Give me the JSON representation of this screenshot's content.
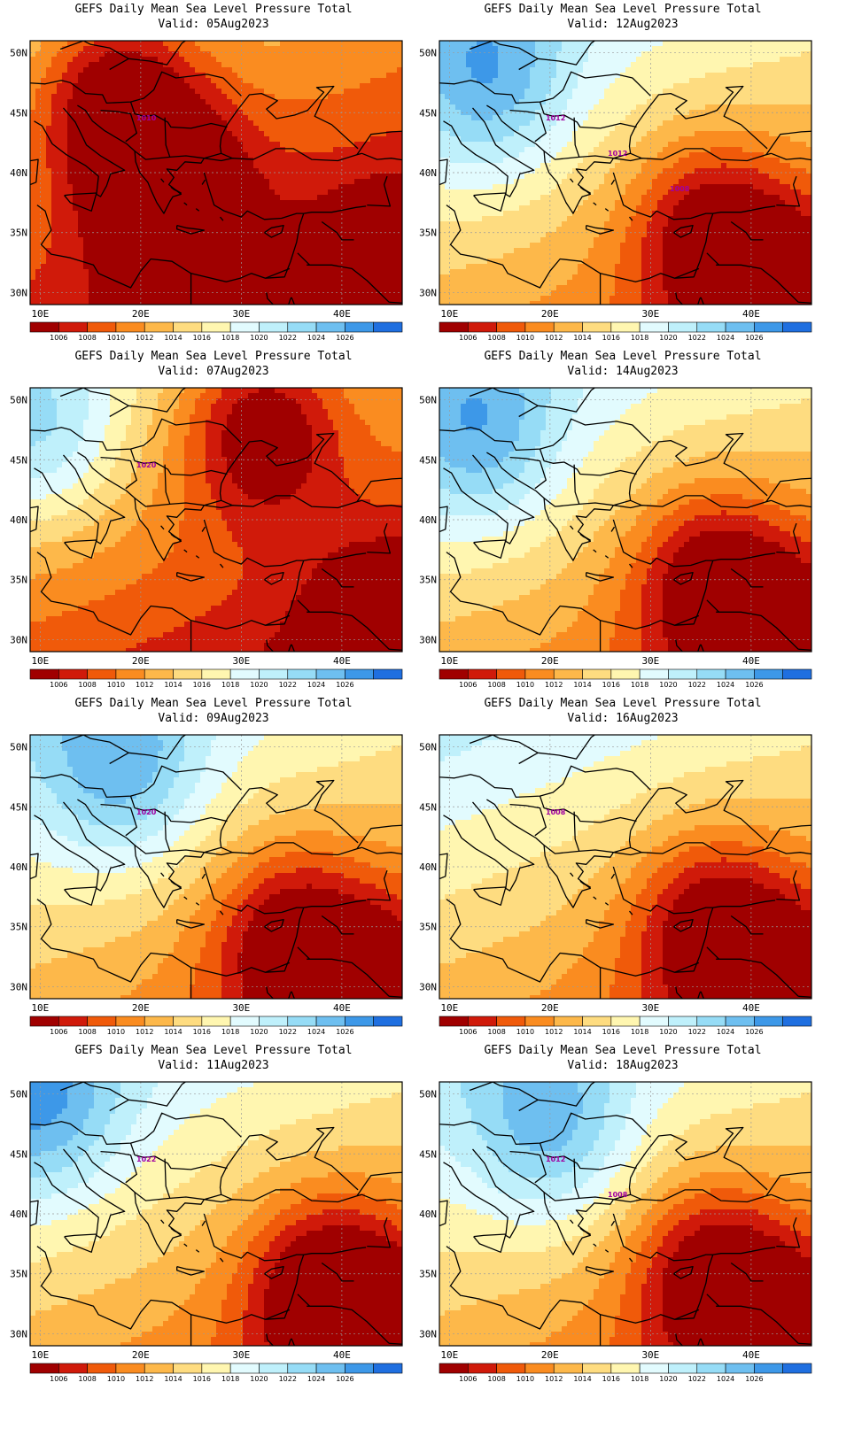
{
  "panels": [
    {
      "title": "GEFS Daily Mean Sea Level Pressure Total",
      "valid": "Valid: 05Aug2023",
      "isobar_labels": [
        "1010"
      ],
      "high_cells": [],
      "low_cells": [
        [
          23,
          38
        ],
        [
          17.5,
          46.5
        ]
      ],
      "low_bias": 5.5
    },
    {
      "title": "GEFS Daily Mean Sea Level Pressure Total",
      "valid": "Valid: 12Aug2023",
      "isobar_labels": [
        "1012",
        "1012",
        "1008"
      ],
      "high_cells": [
        [
          14,
          47.5
        ]
      ],
      "low_cells": [
        [
          36,
          35
        ]
      ],
      "low_bias": 0
    },
    {
      "title": "GEFS Daily Mean Sea Level Pressure Total",
      "valid": "Valid: 07Aug2023",
      "isobar_labels": [
        "1020"
      ],
      "high_cells": [
        [
          10,
          47
        ]
      ],
      "low_cells": [
        [
          32,
          48
        ]
      ],
      "low_bias": 4
    },
    {
      "title": "GEFS Daily Mean Sea Level Pressure Total",
      "valid": "Valid: 14Aug2023",
      "isobar_labels": [],
      "high_cells": [
        [
          13,
          47
        ]
      ],
      "low_cells": [
        [
          36,
          35
        ]
      ],
      "low_bias": 0
    },
    {
      "title": "GEFS Daily Mean Sea Level Pressure Total",
      "valid": "Valid: 09Aug2023",
      "isobar_labels": [
        "1020"
      ],
      "high_cells": [
        [
          18,
          48
        ]
      ],
      "low_cells": [
        [
          35,
          34
        ]
      ],
      "low_bias": 0
    },
    {
      "title": "GEFS Daily Mean Sea Level Pressure Total",
      "valid": "Valid: 16Aug2023",
      "isobar_labels": [
        "1008"
      ],
      "high_cells": [],
      "low_cells": [
        [
          36,
          35
        ]
      ],
      "low_bias": 0
    },
    {
      "title": "GEFS Daily Mean Sea Level Pressure Total",
      "valid": "Valid: 11Aug2023",
      "isobar_labels": [
        "1022"
      ],
      "high_cells": [
        [
          10,
          49
        ]
      ],
      "low_cells": [
        [
          38,
          34
        ]
      ],
      "low_bias": 0
    },
    {
      "title": "GEFS Daily Mean Sea Level Pressure Total",
      "valid": "Valid: 18Aug2023",
      "isobar_labels": [
        "1012",
        "1008"
      ],
      "high_cells": [
        [
          20,
          47
        ]
      ],
      "low_cells": [
        [
          36,
          35
        ]
      ],
      "low_bias": 0
    }
  ],
  "axes": {
    "y_ticks": [
      "50N",
      "45N",
      "40N",
      "35N",
      "30N"
    ],
    "x_ticks": [
      "10E",
      "20E",
      "30E",
      "40E"
    ],
    "lat_values": [
      50,
      45,
      40,
      35,
      30
    ],
    "lon_values": [
      10,
      20,
      30,
      40
    ],
    "lon_range": [
      9,
      46
    ],
    "lat_range": [
      29,
      51
    ]
  },
  "colorbar": {
    "labels": [
      "1006",
      "1008",
      "1010",
      "1012",
      "1014",
      "1016",
      "1018",
      "1020",
      "1022",
      "1024",
      "1026"
    ],
    "colors": [
      "#a00000",
      "#d01a0a",
      "#f05a0a",
      "#fa8c20",
      "#fdb84a",
      "#fedc80",
      "#fff6b0",
      "#e2fbfe",
      "#bff0fb",
      "#96dcf6",
      "#6ebff0",
      "#3d98e8",
      "#1f6fe0"
    ]
  },
  "colors": {
    "isobar": "#a000a0",
    "coast": "#000000",
    "grid": "#9a9a9a"
  }
}
